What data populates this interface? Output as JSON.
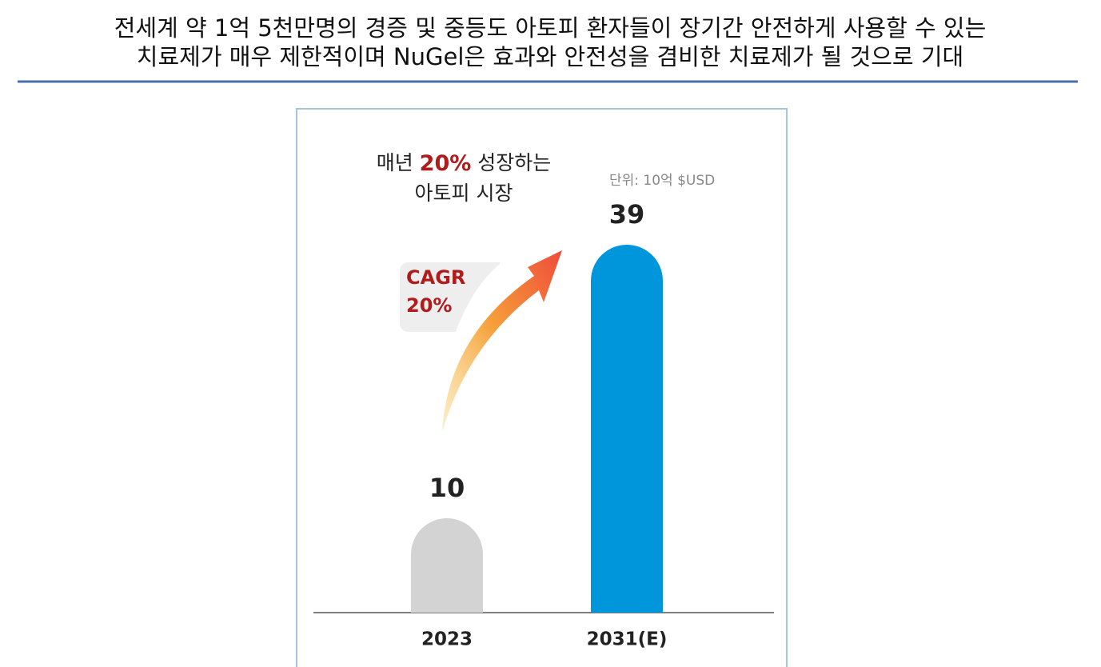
{
  "headline": [
    "전세계 약 1억 5천만명의 경증 및 중등도 아토피 환자들이 장기간 안전하게 사용할 수 있는",
    "치료제가 매우 제한적이며 NuGel은 효과와 안전성을 겸비한 치료제가 될 것으로 기대"
  ],
  "chart_data": {
    "type": "bar",
    "categories": [
      "2023",
      "2031(E)"
    ],
    "values": [
      10,
      39
    ],
    "colors": [
      "#d3d3d3",
      "#0096dc"
    ],
    "unit_note": "단위: 10억 $USD",
    "growth_note": [
      "매년",
      "20%",
      "성장하는",
      "아토피 시장"
    ],
    "cagr_note": [
      "CAGR",
      "20%"
    ]
  }
}
